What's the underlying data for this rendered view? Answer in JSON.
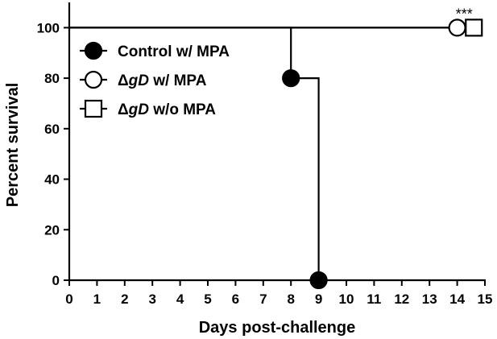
{
  "chart_data": {
    "type": "line",
    "xlabel": "Days post-challenge",
    "ylabel": "Percent survival",
    "xlim": [
      0,
      15
    ],
    "ylim": [
      0,
      110
    ],
    "x_ticks": [
      0,
      1,
      2,
      3,
      4,
      5,
      6,
      7,
      8,
      9,
      10,
      11,
      12,
      13,
      14,
      15
    ],
    "y_ticks": [
      0,
      20,
      40,
      60,
      80,
      100
    ],
    "grid": false,
    "legend_position": "top-left",
    "series": [
      {
        "name": "Control w/ MPA",
        "marker": "filled-circle",
        "color": "#000000",
        "steps": [
          [
            0,
            100
          ],
          [
            8,
            100
          ],
          [
            8,
            80
          ],
          [
            9,
            80
          ],
          [
            9,
            0
          ]
        ],
        "markers": [
          [
            8,
            80
          ],
          [
            9,
            0
          ]
        ]
      },
      {
        "name_prefix": "Δ",
        "name_italic": "gD",
        "name_suffix": " w/ MPA",
        "marker": "open-circle",
        "color": "#000000",
        "steps": [
          [
            0,
            100
          ],
          [
            14,
            100
          ]
        ],
        "markers": [
          [
            14,
            100
          ]
        ]
      },
      {
        "name_prefix": "Δ",
        "name_italic": "gD",
        "name_suffix": " w/o MPA",
        "marker": "open-square",
        "color": "#000000",
        "steps": [
          [
            0,
            100
          ],
          [
            14.6,
            100
          ]
        ],
        "markers": [
          [
            14.6,
            100
          ]
        ]
      }
    ],
    "annotations": [
      {
        "text": "***",
        "x": 14.25,
        "y": 100
      }
    ]
  }
}
